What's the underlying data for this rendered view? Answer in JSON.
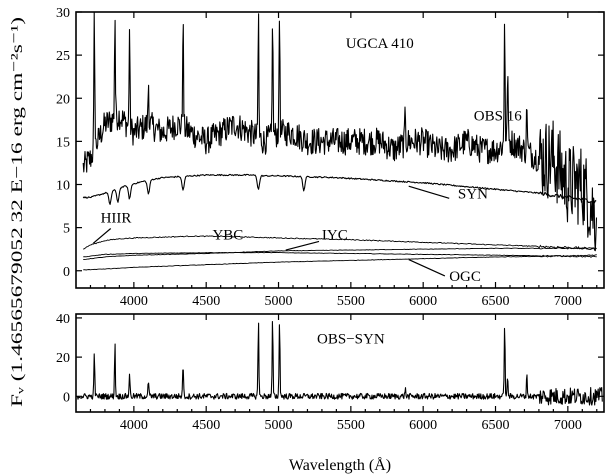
{
  "chart_data": [
    {
      "type": "line",
      "panel": "top",
      "xlim": [
        3600,
        7250
      ],
      "ylim": [
        -2,
        30
      ],
      "x_ticks": [
        4000,
        4500,
        5000,
        5500,
        6000,
        6500,
        7000
      ],
      "x_tick_labels": [
        "4000",
        "4500",
        "5000",
        "5500",
        "6000",
        "6500",
        "7000"
      ],
      "y_ticks": [
        0,
        5,
        10,
        15,
        20,
        25,
        30
      ],
      "y_tick_labels": [
        "0",
        "5",
        "10",
        "15",
        "20",
        "25",
        "30"
      ],
      "annotations": [
        "UGCA 410",
        "OBS 16",
        "SYN",
        "HIIR",
        "YBC",
        "IYC",
        "OGC"
      ],
      "series": [
        {
          "name": "OBS",
          "x": [
            3650,
            3700,
            3800,
            3900,
            4000,
            4100,
            4200,
            4300,
            4400,
            4500,
            4600,
            4700,
            4800,
            4900,
            5000,
            5100,
            5200,
            5300,
            5400,
            5500,
            5600,
            5700,
            5800,
            5900,
            6000,
            6100,
            6200,
            6300,
            6400,
            6500,
            6600,
            6700,
            6800,
            6900,
            7000,
            7100,
            7200
          ],
          "values": [
            12,
            13,
            17,
            18,
            16,
            17,
            16,
            17,
            16,
            15,
            16,
            17,
            16,
            15,
            16,
            16,
            15,
            15,
            15,
            15,
            15,
            15,
            14,
            15,
            15,
            14,
            14,
            15,
            14,
            14,
            15,
            14,
            13,
            13,
            10,
            10,
            6
          ],
          "emission_lines": [
            {
              "x": 3727,
              "peak": 30
            },
            {
              "x": 3869,
              "peak": 30
            },
            {
              "x": 3970,
              "peak": 28
            },
            {
              "x": 4101,
              "peak": 22
            },
            {
              "x": 4340,
              "peak": 30
            },
            {
              "x": 4861,
              "peak": 30
            },
            {
              "x": 4959,
              "peak": 30
            },
            {
              "x": 5007,
              "peak": 30
            },
            {
              "x": 5876,
              "peak": 19
            },
            {
              "x": 6563,
              "peak": 30
            },
            {
              "x": 6584,
              "peak": 24
            },
            {
              "x": 6717,
              "peak": 20
            }
          ]
        },
        {
          "name": "SYN",
          "x": [
            3650,
            3700,
            3800,
            3900,
            4000,
            4100,
            4200,
            4300,
            4400,
            4500,
            4600,
            4700,
            4800,
            4900,
            5000,
            5200,
            5400,
            5600,
            5800,
            6000,
            6200,
            6400,
            6600,
            6800,
            7000,
            7200
          ],
          "values": [
            8.5,
            8.5,
            9.0,
            9.6,
            10.1,
            10.5,
            10.8,
            10.9,
            11.0,
            11.1,
            11.1,
            11.1,
            11.1,
            11.0,
            11.0,
            10.9,
            10.8,
            10.6,
            10.4,
            10.2,
            9.9,
            9.6,
            9.3,
            9.0,
            8.5,
            8.0
          ],
          "absorption_lines": [
            3835,
            3889,
            3970,
            4101,
            4340,
            4861,
            5175
          ]
        },
        {
          "name": "HIIR",
          "x": [
            3650,
            3700,
            3800,
            3900,
            4000,
            4200,
            4400,
            4600,
            4800,
            5000,
            5500,
            6000,
            6500,
            7000,
            7200
          ],
          "values": [
            2.5,
            3.0,
            3.5,
            3.7,
            3.8,
            3.9,
            4.0,
            4.0,
            3.9,
            3.8,
            3.6,
            3.3,
            3.0,
            2.7,
            2.5
          ]
        },
        {
          "name": "YBC",
          "x": [
            3650,
            3800,
            4000,
            4500,
            5000,
            5500,
            6000,
            6500,
            7000,
            7200
          ],
          "values": [
            1.6,
            1.9,
            2.0,
            2.1,
            2.1,
            2.0,
            1.9,
            1.8,
            1.7,
            1.6
          ]
        },
        {
          "name": "IYC",
          "x": [
            3650,
            3800,
            4000,
            4500,
            5000,
            5500,
            6000,
            6500,
            7000,
            7200
          ],
          "values": [
            1.3,
            1.6,
            1.8,
            2.0,
            2.3,
            2.4,
            2.5,
            2.6,
            2.6,
            2.6
          ]
        },
        {
          "name": "OGC",
          "x": [
            3650,
            3800,
            4000,
            4500,
            5000,
            5500,
            6000,
            6500,
            7000,
            7200
          ],
          "values": [
            0.1,
            0.2,
            0.4,
            0.7,
            1.0,
            1.2,
            1.4,
            1.6,
            1.7,
            1.8
          ]
        }
      ]
    },
    {
      "type": "line",
      "panel": "bottom",
      "xlim": [
        3600,
        7250
      ],
      "ylim": [
        -8,
        42
      ],
      "xlabel": "Wavelength (Å)",
      "ylabel": "Fᵥ (1.46565679052 32 E−16 erg cm⁻²s⁻¹)",
      "x_ticks": [
        4000,
        4500,
        5000,
        5500,
        6000,
        6500,
        7000
      ],
      "x_tick_labels": [
        "4000",
        "4500",
        "5000",
        "5500",
        "6000",
        "6500",
        "7000"
      ],
      "y_ticks": [
        0,
        20,
        40
      ],
      "y_tick_labels": [
        "0",
        "20",
        "40"
      ],
      "annotations": [
        "OBS−SYN"
      ],
      "series": [
        {
          "name": "OBS-SYN",
          "baseline": 0,
          "emission_lines": [
            {
              "x": 3727,
              "peak": 22
            },
            {
              "x": 3869,
              "peak": 27
            },
            {
              "x": 3970,
              "peak": 12
            },
            {
              "x": 4101,
              "peak": 8
            },
            {
              "x": 4340,
              "peak": 18
            },
            {
              "x": 4861,
              "peak": 40
            },
            {
              "x": 4959,
              "peak": 40
            },
            {
              "x": 5007,
              "peak": 40
            },
            {
              "x": 5876,
              "peak": 4
            },
            {
              "x": 6563,
              "peak": 38
            },
            {
              "x": 6584,
              "peak": 10
            },
            {
              "x": 6717,
              "peak": 12
            }
          ]
        }
      ]
    }
  ]
}
